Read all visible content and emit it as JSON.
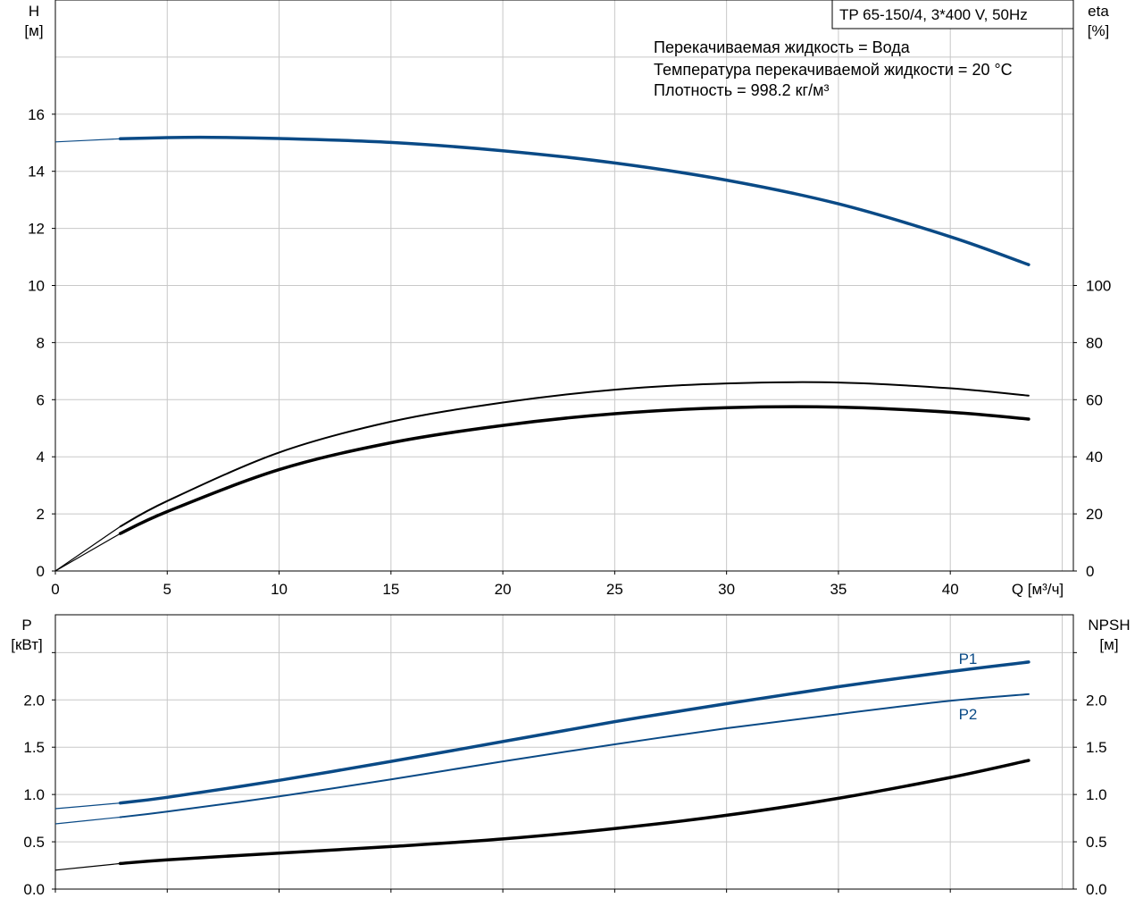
{
  "chart_data": [
    {
      "type": "line",
      "title": "TP 65-150/4, 3*400 V, 50Hz",
      "info_lines": [
        "Перекачиваемая жидкость = Вода",
        "Температура перекачиваемой жидкости = 20 °C",
        "Плотность = 998.2 кг/м³"
      ],
      "xlabel": "Q [м³/ч]",
      "xlim": [
        0,
        45.5
      ],
      "x_ticks": [
        0,
        5,
        10,
        15,
        20,
        25,
        30,
        35,
        40
      ],
      "x_tick_labels": [
        "0",
        "5",
        "10",
        "15",
        "20",
        "25",
        "30",
        "35",
        "40"
      ],
      "y_left": {
        "label": "H",
        "unit": "[м]",
        "lim": [
          0,
          20
        ],
        "ticks": [
          0,
          2,
          4,
          6,
          8,
          10,
          12,
          14,
          16
        ],
        "tick_labels": [
          "0",
          "2",
          "4",
          "6",
          "8",
          "10",
          "12",
          "14",
          "16"
        ]
      },
      "y_right": {
        "label": "eta",
        "unit": "[%]",
        "lim": [
          0,
          200
        ],
        "ticks": [
          0,
          20,
          40,
          60,
          80,
          100
        ],
        "tick_labels": [
          "0",
          "20",
          "40",
          "60",
          "80",
          "100"
        ]
      },
      "series": [
        {
          "axis": "left",
          "color": "#0a4a86",
          "style": "bold",
          "x": [
            0,
            2.9,
            5,
            7,
            10,
            15,
            20,
            25,
            30,
            35,
            40,
            43.5
          ],
          "y": [
            15.03,
            15.14,
            15.18,
            15.19,
            15.15,
            15.01,
            14.72,
            14.29,
            13.69,
            12.86,
            11.71,
            10.73
          ]
        },
        {
          "axis": "right",
          "color": "#000000",
          "style": "thin",
          "x": [
            0,
            2.9,
            5,
            10,
            15,
            20,
            25,
            30,
            35,
            40,
            43.5
          ],
          "y": [
            0,
            15.6,
            24.5,
            41.5,
            52.3,
            59,
            63.5,
            65.7,
            66,
            64,
            61.4
          ]
        },
        {
          "axis": "right",
          "color": "#000000",
          "style": "bold",
          "x": [
            0,
            2.9,
            5,
            10,
            15,
            20,
            25,
            30,
            35,
            40,
            43.5
          ],
          "y": [
            0,
            13.1,
            20.8,
            35.5,
            44.9,
            51,
            55.1,
            57.2,
            57.4,
            55.6,
            53.2
          ]
        }
      ]
    },
    {
      "type": "line",
      "xlim": [
        0,
        45.5
      ],
      "x_ticks": [
        0,
        5,
        10,
        15,
        20,
        25,
        30,
        35,
        40
      ],
      "y_left": {
        "label": "P",
        "unit": "[кВт]",
        "lim": [
          0,
          2.9
        ],
        "ticks": [
          0,
          0.5,
          1.0,
          1.5,
          2.0,
          2.5
        ],
        "tick_labels": [
          "0.0",
          "0.5",
          "1.0",
          "1.5",
          "2.0",
          ""
        ]
      },
      "y_right": {
        "label": "NPSH",
        "unit": "[м]",
        "lim": [
          0,
          2.9
        ],
        "ticks": [
          0,
          0.5,
          1.0,
          1.5,
          2.0,
          2.5
        ],
        "tick_labels": [
          "0.0",
          "0.5",
          "1.0",
          "1.5",
          "2.0",
          ""
        ]
      },
      "series": [
        {
          "name": "P1",
          "axis": "left",
          "color": "#0a4a86",
          "style": "bold",
          "x": [
            0,
            2.9,
            5,
            10,
            15,
            20,
            25,
            30,
            35,
            40,
            43.5
          ],
          "y": [
            0.85,
            0.91,
            0.97,
            1.15,
            1.35,
            1.56,
            1.77,
            1.96,
            2.14,
            2.3,
            2.4
          ]
        },
        {
          "name": "P2",
          "axis": "left",
          "color": "#0a4a86",
          "style": "thin",
          "x": [
            0,
            2.9,
            5,
            10,
            15,
            20,
            25,
            30,
            35,
            40,
            43.5
          ],
          "y": [
            0.69,
            0.76,
            0.82,
            0.98,
            1.16,
            1.35,
            1.53,
            1.7,
            1.85,
            1.99,
            2.06
          ]
        },
        {
          "axis": "right",
          "color": "#000000",
          "style": "bold",
          "x": [
            0,
            2.9,
            5,
            10,
            15,
            20,
            25,
            30,
            35,
            40,
            43.5
          ],
          "y": [
            0.2,
            0.27,
            0.31,
            0.38,
            0.45,
            0.53,
            0.64,
            0.78,
            0.96,
            1.18,
            1.36
          ]
        }
      ]
    }
  ]
}
